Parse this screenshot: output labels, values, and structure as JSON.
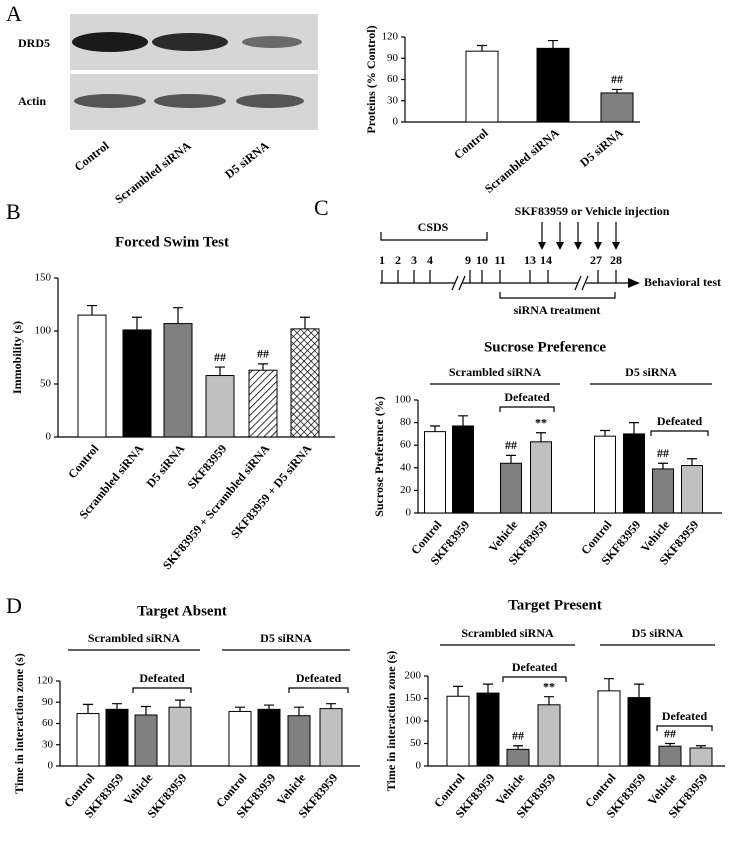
{
  "panel_labels": [
    "A",
    "B",
    "C",
    "D"
  ],
  "blot": {
    "rows": [
      "DRD5",
      "Actin"
    ],
    "lanes": [
      "Control",
      "Scrambled siRNA",
      "D5 siRNA"
    ]
  },
  "timeline": {
    "injection": "SKF83959 or Vehicle injection",
    "stress": "CSDS",
    "days": [
      "1",
      "2",
      "3",
      "4",
      "9",
      "10",
      "11",
      "13",
      "14",
      "27",
      "28"
    ],
    "end": "Behavioral test",
    "treatment": "siRNA treatment"
  },
  "chart_data": [
    {
      "type": "bar",
      "ylabel": "Proteins (% Control)",
      "categories": [
        "Control",
        "Scrambled siRNA",
        "D5 siRNA"
      ],
      "values": [
        100,
        104,
        41
      ],
      "errors": [
        8,
        11,
        5
      ],
      "colors": [
        "#ffffff",
        "#000000",
        "#808080"
      ],
      "significance": [
        null,
        null,
        "##"
      ],
      "ylim": [
        0,
        120
      ],
      "yticks": [
        0,
        30,
        60,
        90,
        120
      ]
    },
    {
      "type": "bar",
      "title": "Forced Swim Test",
      "ylabel": "Immobility (s)",
      "categories": [
        "Control",
        "Scrambled siRNA",
        "D5 siRNA",
        "SKF83959",
        "SKF83959 + Scrambled siRNA",
        "SKF83959 + D5 siRNA"
      ],
      "values": [
        115,
        101,
        107,
        58,
        63,
        102
      ],
      "errors": [
        9,
        12,
        15,
        8,
        6,
        11
      ],
      "colors": [
        "#ffffff",
        "#000000",
        "#808080",
        "#c0c0c0",
        "diagonal-hatch",
        "cross-hatch"
      ],
      "significance": [
        null,
        null,
        null,
        "##",
        "##",
        null
      ],
      "ylim": [
        0,
        150
      ],
      "yticks": [
        0,
        50,
        100,
        150
      ]
    },
    {
      "type": "bar",
      "title": "Sucrose Preference",
      "ylabel": "Sucrose Preference (%)",
      "groups": [
        {
          "name": "Scrambled siRNA",
          "label": "Defeated"
        },
        {
          "name": "D5 siRNA",
          "label": "Defeated"
        }
      ],
      "categories": [
        "Control",
        "SKF83959",
        "Vehicle",
        "SKF83959",
        "Control",
        "SKF83959",
        "Vehicle",
        "SKF83959"
      ],
      "values": [
        72,
        77,
        44,
        63,
        68,
        70,
        39,
        42
      ],
      "errors": [
        5,
        9,
        7,
        8,
        5,
        10,
        5,
        6
      ],
      "colors": [
        "#ffffff",
        "#000000",
        "#808080",
        "#c0c0c0",
        "#ffffff",
        "#000000",
        "#808080",
        "#c0c0c0"
      ],
      "significance": [
        null,
        null,
        "##",
        "**",
        null,
        null,
        "##",
        null
      ],
      "ylim": [
        0,
        100
      ],
      "yticks": [
        0,
        20,
        40,
        60,
        80,
        100
      ]
    },
    {
      "type": "bar",
      "title": "Target Absent",
      "ylabel": "Time in interaction zone (s)",
      "groups": [
        {
          "name": "Scrambled siRNA",
          "label": "Defeated"
        },
        {
          "name": "D5 siRNA",
          "label": "Defeated"
        }
      ],
      "categories": [
        "Control",
        "SKF83959",
        "Vehicle",
        "SKF83959",
        "Control",
        "SKF83959",
        "Vehicle",
        "SKF83959"
      ],
      "values": [
        74,
        80,
        72,
        83,
        77,
        80,
        71,
        81
      ],
      "errors": [
        13,
        8,
        12,
        10,
        6,
        6,
        12,
        7
      ],
      "colors": [
        "#ffffff",
        "#000000",
        "#808080",
        "#c0c0c0",
        "#ffffff",
        "#000000",
        "#808080",
        "#c0c0c0"
      ],
      "significance": [
        null,
        null,
        null,
        null,
        null,
        null,
        null,
        null
      ],
      "ylim": [
        0,
        120
      ],
      "yticks": [
        0,
        30,
        60,
        90,
        120
      ]
    },
    {
      "type": "bar",
      "title": "Target Present",
      "ylabel": "Time in interaction zone (s)",
      "groups": [
        {
          "name": "Scrambled siRNA",
          "label": "Defeated"
        },
        {
          "name": "D5 siRNA",
          "label": "Defeated"
        }
      ],
      "categories": [
        "Control",
        "SKF83959",
        "Vehicle",
        "SKF83959",
        "Control",
        "SKF83959",
        "Vehicle",
        "SKF83959"
      ],
      "values": [
        155,
        162,
        37,
        136,
        167,
        152,
        44,
        40
      ],
      "errors": [
        22,
        20,
        8,
        18,
        27,
        30,
        6,
        5
      ],
      "colors": [
        "#ffffff",
        "#000000",
        "#808080",
        "#c0c0c0",
        "#ffffff",
        "#000000",
        "#808080",
        "#c0c0c0"
      ],
      "significance": [
        null,
        null,
        "##",
        "**",
        null,
        null,
        "##",
        null
      ],
      "ylim": [
        0,
        200
      ],
      "yticks": [
        0,
        50,
        100,
        150,
        200
      ]
    }
  ]
}
